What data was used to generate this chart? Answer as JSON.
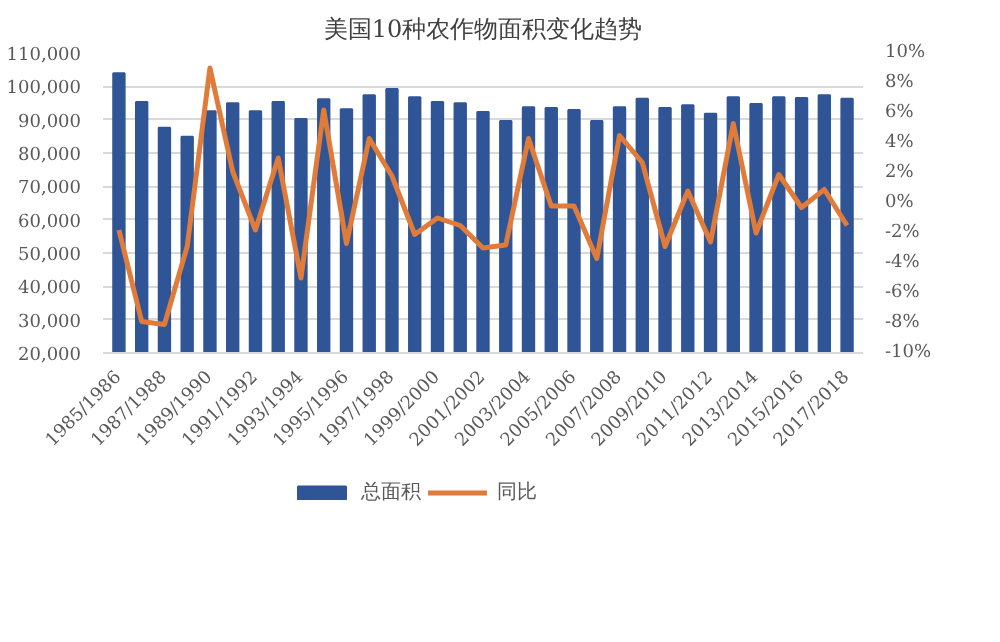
{
  "chart_data": {
    "type": "bar",
    "title": "美国10种农作物面积变化趋势",
    "categories": [
      "1985/1986",
      null,
      "1987/1988",
      null,
      "1989/1990",
      null,
      "1991/1992",
      null,
      "1993/1994",
      null,
      "1995/1996",
      null,
      "1997/1998",
      null,
      "1999/2000",
      null,
      "2001/2002",
      null,
      "2003/2004",
      null,
      "2005/2006",
      null,
      "2007/2008",
      null,
      "2009/2010",
      null,
      "2011/2012",
      null,
      "2013/2014",
      null,
      "2015/2016",
      null,
      "2017/2018"
    ],
    "series": [
      {
        "name": "总面积",
        "color": "#2f5597",
        "values": [
          103900,
          95300,
          87600,
          84900,
          92500,
          94900,
          92500,
          95300,
          90200,
          96100,
          93100,
          97300,
          99200,
          96700,
          95300,
          94900,
          92300,
          89600,
          93700,
          93500,
          92900,
          89600,
          93700,
          96300,
          93500,
          94300,
          91800,
          96700,
          94700,
          96700,
          96500,
          97300,
          96300
        ]
      },
      {
        "name": "同比",
        "type": "line",
        "axis": "y2",
        "color": "#e07b39",
        "values": [
          -1.8,
          -7.9,
          -8.1,
          -2.9,
          9.0,
          2.1,
          -1.8,
          3.0,
          -5.0,
          6.2,
          -2.7,
          4.3,
          1.8,
          -2.1,
          -1.0,
          -1.5,
          -3.0,
          -2.8,
          4.3,
          -0.2,
          -0.2,
          -3.7,
          4.5,
          2.7,
          -2.9,
          0.8,
          -2.6,
          5.3,
          -2.0,
          1.9,
          -0.3,
          0.9,
          -1.5
        ]
      }
    ],
    "ylim": [
      20000,
      110000
    ],
    "yticks": [
      {
        "value": 20000,
        "label": "20,000"
      },
      {
        "value": 30000,
        "label": "30,000"
      },
      {
        "value": 40000,
        "label": "40,000"
      },
      {
        "value": 50000,
        "label": "50,000"
      },
      {
        "value": 60000,
        "label": "60,000"
      },
      {
        "value": 70000,
        "label": "70,000"
      },
      {
        "value": 80000,
        "label": "80,000"
      },
      {
        "value": 90000,
        "label": "90,000"
      },
      {
        "value": 100000,
        "label": "100,000"
      },
      {
        "value": 110000,
        "label": "110,000"
      }
    ],
    "y2lim": [
      -10,
      10
    ],
    "y2ticks": [
      {
        "value": -10,
        "label": "-10%"
      },
      {
        "value": -8,
        "label": "-8%"
      },
      {
        "value": -6,
        "label": "-6%"
      },
      {
        "value": -4,
        "label": "-4%"
      },
      {
        "value": -2,
        "label": "-2%"
      },
      {
        "value": 0,
        "label": "0%"
      },
      {
        "value": 2,
        "label": "2%"
      },
      {
        "value": 4,
        "label": "4%"
      },
      {
        "value": 6,
        "label": "6%"
      },
      {
        "value": 8,
        "label": "8%"
      },
      {
        "value": 10,
        "label": "10%"
      }
    ],
    "grid": "y",
    "legend": "bottom",
    "line_style": "solid"
  }
}
